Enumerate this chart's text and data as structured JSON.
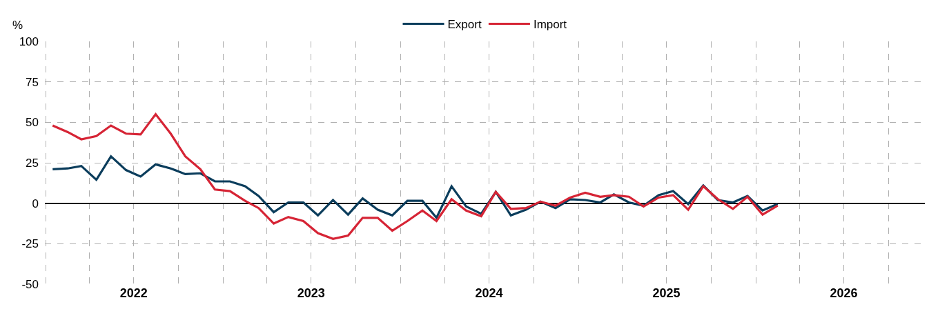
{
  "chart_data": {
    "type": "line",
    "ylabel": "%",
    "x": [
      "2022-01-15",
      "2022-02-15",
      "2022-03-15",
      "2022-04-15",
      "2022-05-15",
      "2022-06-15",
      "2022-07-15",
      "2022-08-15",
      "2022-09-15",
      "2022-10-15",
      "2022-11-15",
      "2022-12-15",
      "2023-01-15",
      "2023-02-15",
      "2023-03-15",
      "2023-04-15",
      "2023-05-15",
      "2023-06-15",
      "2023-07-15",
      "2023-08-15",
      "2023-09-15",
      "2023-10-15",
      "2023-11-15",
      "2023-12-15",
      "2024-01-15",
      "2024-02-15",
      "2024-03-15",
      "2024-04-15",
      "2024-05-15",
      "2024-06-15",
      "2024-07-15",
      "2024-08-15",
      "2024-09-15",
      "2024-10-15",
      "2024-11-15",
      "2024-12-15",
      "2025-01-15",
      "2025-02-15",
      "2025-03-15",
      "2025-04-15",
      "2025-05-15",
      "2025-06-15",
      "2025-07-15",
      "2025-08-15",
      "2025-09-15",
      "2025-10-15",
      "2025-11-15",
      "2025-12-15",
      "2026-01-15",
      "2026-02-15"
    ],
    "series": [
      {
        "name": "Export",
        "color": "#0b3d5c",
        "values": [
          21,
          21.5,
          23,
          14.5,
          29,
          20.5,
          16.5,
          24,
          21.5,
          18,
          18.5,
          13.5,
          13.5,
          10.5,
          4.5,
          -5.5,
          0.5,
          0.5,
          -7.5,
          2,
          -7,
          3,
          -4,
          -7.5,
          1.5,
          1.5,
          -9,
          10.5,
          -2,
          -6.5,
          7,
          -7.5,
          -4,
          1,
          -3,
          2.5,
          2,
          0.5,
          5.5,
          0.5,
          -1.5,
          5,
          7.5,
          -0.5,
          11,
          2,
          0.5,
          4.5,
          -4.5,
          -0.5
        ]
      },
      {
        "name": "Import",
        "color": "#d62435",
        "values": [
          48,
          44,
          39.5,
          41.5,
          48,
          43,
          42.5,
          55,
          43,
          29,
          21,
          8.5,
          7.5,
          1.5,
          -3,
          -12.5,
          -8.5,
          -11,
          -18.5,
          -22,
          -20,
          -9,
          -9,
          -17,
          -11,
          -4.5,
          -11,
          2.5,
          -4.5,
          -8,
          7,
          -3.5,
          -3,
          1,
          -1.5,
          3.5,
          6.5,
          4,
          5,
          4,
          -2,
          3.5,
          5,
          -4,
          10.5,
          2.5,
          -3.5,
          4,
          -7,
          -1.5
        ]
      }
    ],
    "xlim": [
      "2021-12-30",
      "2026-12-15"
    ],
    "xticks": [
      {
        "value": "2022-01",
        "label": null
      },
      {
        "value": "2022-04",
        "label": null
      },
      {
        "value": "2022-07",
        "label": "2022"
      },
      {
        "value": "2022-10",
        "label": null
      },
      {
        "value": "2023-01",
        "label": null
      },
      {
        "value": "2023-04",
        "label": null
      },
      {
        "value": "2023-07",
        "label": "2023"
      },
      {
        "value": "2023-10",
        "label": null
      },
      {
        "value": "2024-01",
        "label": null
      },
      {
        "value": "2024-04",
        "label": null
      },
      {
        "value": "2024-07",
        "label": "2024"
      },
      {
        "value": "2024-10",
        "label": null
      },
      {
        "value": "2025-01",
        "label": null
      },
      {
        "value": "2025-04",
        "label": null
      },
      {
        "value": "2025-07",
        "label": "2025"
      },
      {
        "value": "2025-10",
        "label": null
      },
      {
        "value": "2026-01",
        "label": null
      },
      {
        "value": "2026-04",
        "label": null
      },
      {
        "value": "2026-07",
        "label": "2026"
      },
      {
        "value": "2026-10",
        "label": null
      }
    ],
    "ylim": [
      -50,
      100
    ],
    "yticks": [
      -50,
      -25,
      0,
      25,
      50,
      75,
      100
    ],
    "grid": true,
    "legend": "top",
    "marker": "none",
    "line_style": "solid"
  }
}
